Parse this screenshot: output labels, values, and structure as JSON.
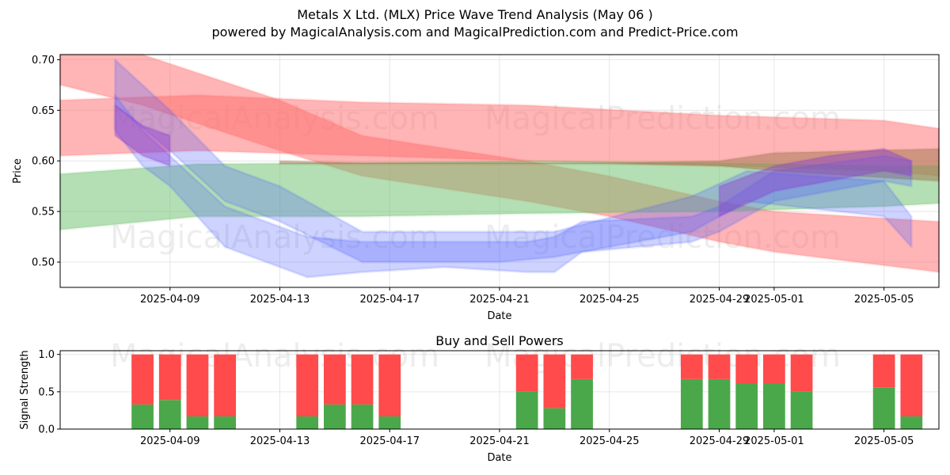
{
  "title_line1": "Metals X Ltd. (MLX) Price Wave Trend Analysis (May 06 )",
  "title_line2": "powered by MagicalAnalysis.com and MagicalPrediction.com and Predict-Price.com",
  "watermarks": [
    "MagicalAnalysis.com",
    "MagicalPrediction.com"
  ],
  "colors": {
    "red_band": "#ff6b6b",
    "green_band": "#6abf6a",
    "brown_band": "#a0764e",
    "blue_band": "#4a5cff",
    "purple_band": "#8a3fd0",
    "buy": "#4aa84a",
    "sell": "#ff4b4b"
  },
  "chart_data": [
    {
      "type": "area",
      "title": "",
      "xlabel": "Date",
      "ylabel": "Price",
      "ylim": [
        0.475,
        0.705
      ],
      "xlim": [
        "2025-04-05",
        "2025-05-07"
      ],
      "grid": true,
      "x_ticks": [
        "2025-04-09",
        "2025-04-13",
        "2025-04-17",
        "2025-04-21",
        "2025-04-25",
        "2025-04-29",
        "2025-05-01",
        "2025-05-05"
      ],
      "y_ticks": [
        "0.50",
        "0.55",
        "0.60",
        "0.65",
        "0.70"
      ],
      "series": [
        {
          "color_key": "red_band",
          "x": [
            "2025-04-05",
            "2025-04-08",
            "2025-04-13",
            "2025-04-16",
            "2025-04-22",
            "2025-04-25",
            "2025-04-29",
            "2025-05-01",
            "2025-05-07"
          ],
          "low": [
            0.675,
            0.655,
            0.61,
            0.585,
            0.56,
            0.545,
            0.52,
            0.51,
            0.49
          ],
          "high": [
            0.705,
            0.705,
            0.66,
            0.625,
            0.6,
            0.585,
            0.56,
            0.55,
            0.54
          ]
        },
        {
          "color_key": "red_band",
          "x": [
            "2025-04-05",
            "2025-04-10",
            "2025-04-16",
            "2025-04-22",
            "2025-04-29",
            "2025-05-05",
            "2025-05-07"
          ],
          "low": [
            0.605,
            0.61,
            0.605,
            0.6,
            0.595,
            0.59,
            0.585
          ],
          "high": [
            0.66,
            0.665,
            0.658,
            0.655,
            0.645,
            0.64,
            0.632
          ]
        },
        {
          "color_key": "green_band",
          "x": [
            "2025-04-05",
            "2025-04-10",
            "2025-04-16",
            "2025-04-22",
            "2025-04-29",
            "2025-05-05",
            "2025-05-07"
          ],
          "low": [
            0.532,
            0.545,
            0.545,
            0.548,
            0.55,
            0.555,
            0.558
          ],
          "high": [
            0.587,
            0.597,
            0.598,
            0.6,
            0.598,
            0.595,
            0.595
          ]
        },
        {
          "color_key": "brown_band",
          "x": [
            "2025-04-13",
            "2025-04-16",
            "2025-04-22",
            "2025-04-25",
            "2025-04-29",
            "2025-05-01",
            "2025-05-07"
          ],
          "low": [
            0.597,
            0.597,
            0.597,
            0.597,
            0.595,
            0.59,
            0.58
          ],
          "high": [
            0.6,
            0.598,
            0.598,
            0.598,
            0.6,
            0.608,
            0.612
          ]
        },
        {
          "color_key": "blue_band",
          "x": [
            "2025-04-07",
            "2025-04-08",
            "2025-04-09",
            "2025-04-11",
            "2025-04-14",
            "2025-04-16",
            "2025-04-19",
            "2025-04-22",
            "2025-04-23",
            "2025-04-24",
            "2025-04-28",
            "2025-04-29",
            "2025-05-01",
            "2025-05-05",
            "2025-05-06"
          ],
          "low": [
            0.63,
            0.595,
            0.575,
            0.515,
            0.485,
            0.49,
            0.495,
            0.49,
            0.49,
            0.51,
            0.52,
            0.53,
            0.56,
            0.58,
            0.575
          ],
          "high": [
            0.665,
            0.63,
            0.605,
            0.555,
            0.525,
            0.52,
            0.52,
            0.52,
            0.525,
            0.54,
            0.545,
            0.555,
            0.59,
            0.605,
            0.6
          ]
        },
        {
          "color_key": "blue_band",
          "x": [
            "2025-04-07",
            "2025-04-09",
            "2025-04-11",
            "2025-04-13",
            "2025-04-16",
            "2025-04-21",
            "2025-04-23",
            "2025-04-28",
            "2025-04-30",
            "2025-05-05",
            "2025-05-06"
          ],
          "low": [
            0.655,
            0.61,
            0.56,
            0.54,
            0.5,
            0.5,
            0.505,
            0.53,
            0.56,
            0.545,
            0.515
          ],
          "high": [
            0.7,
            0.65,
            0.595,
            0.575,
            0.53,
            0.53,
            0.53,
            0.565,
            0.59,
            0.58,
            0.545
          ]
        },
        {
          "color_key": "purple_band",
          "x": [
            "2025-04-07",
            "2025-04-08",
            "2025-04-09"
          ],
          "low": [
            0.625,
            0.605,
            0.595
          ],
          "high": [
            0.655,
            0.635,
            0.625
          ]
        },
        {
          "color_key": "purple_band",
          "x": [
            "2025-04-29",
            "2025-05-01",
            "2025-05-03",
            "2025-05-05",
            "2025-05-06"
          ],
          "low": [
            0.545,
            0.57,
            0.58,
            0.59,
            0.585
          ],
          "high": [
            0.575,
            0.595,
            0.605,
            0.612,
            0.6
          ]
        }
      ]
    },
    {
      "type": "bar",
      "title": "Buy and Sell Powers",
      "xlabel": "Date",
      "ylabel": "Signal Strength",
      "ylim": [
        0,
        1.05
      ],
      "xlim": [
        "2025-04-05",
        "2025-05-07"
      ],
      "grid": true,
      "x_ticks": [
        "2025-04-09",
        "2025-04-13",
        "2025-04-17",
        "2025-04-21",
        "2025-04-25",
        "2025-04-29",
        "2025-05-01",
        "2025-05-05"
      ],
      "y_ticks": [
        "0.0",
        "0.5",
        "1.0"
      ],
      "dates": [
        "2025-04-08",
        "2025-04-09",
        "2025-04-10",
        "2025-04-11",
        "2025-04-14",
        "2025-04-15",
        "2025-04-16",
        "2025-04-17",
        "2025-04-22",
        "2025-04-23",
        "2025-04-24",
        "2025-04-28",
        "2025-04-29",
        "2025-04-30",
        "2025-05-01",
        "2025-05-02",
        "2025-05-05",
        "2025-05-06"
      ],
      "series": [
        {
          "name": "",
          "color_key": "buy",
          "values": [
            0.33,
            0.39,
            0.17,
            0.17,
            0.17,
            0.33,
            0.33,
            0.17,
            0.5,
            0.28,
            0.67,
            0.67,
            0.67,
            0.61,
            0.61,
            0.5,
            0.56,
            0.17
          ]
        },
        {
          "name": "",
          "color_key": "sell",
          "values": [
            0.67,
            0.61,
            0.83,
            0.83,
            0.83,
            0.67,
            0.67,
            0.83,
            0.5,
            0.72,
            0.33,
            0.33,
            0.33,
            0.39,
            0.39,
            0.5,
            0.44,
            0.83
          ]
        }
      ]
    }
  ]
}
